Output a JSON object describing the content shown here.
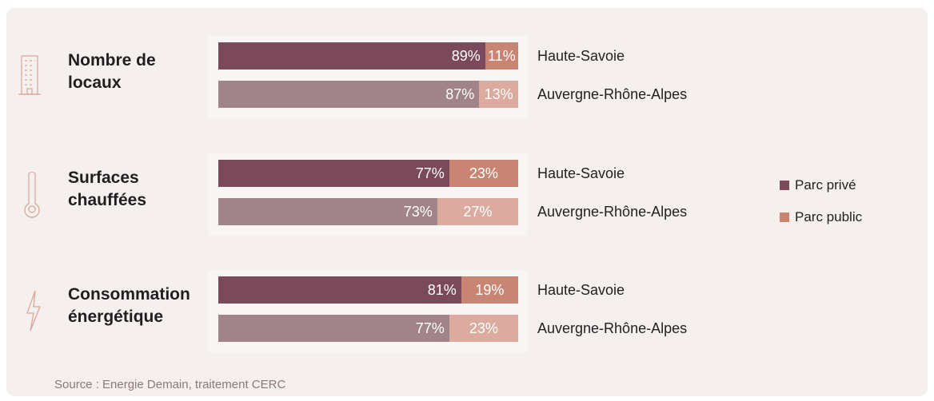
{
  "chart_data": {
    "type": "stacked-bar",
    "orientation": "horizontal",
    "groups": [
      "Nombre de locaux",
      "Surfaces chauffées",
      "Consommation énergétique"
    ],
    "categories": [
      "Haute-Savoie",
      "Auvergne-Rhône-Alpes"
    ],
    "xlim": [
      0,
      100
    ],
    "legend": "right",
    "series": [
      {
        "name": "Parc privé",
        "color": "#7b4a5a",
        "colors": [
          "#7b4a5a",
          "#a1838a"
        ],
        "values": [
          [
            89,
            87
          ],
          [
            77,
            73
          ],
          [
            81,
            77
          ]
        ],
        "value_labels": [
          [
            "89%",
            "87%"
          ],
          [
            "77%",
            "73%"
          ],
          [
            "81%",
            "77%"
          ]
        ]
      },
      {
        "name": "Parc public",
        "color": "#c98573",
        "colors": [
          "#c98573",
          "#dbab9f"
        ],
        "values": [
          [
            11,
            13
          ],
          [
            23,
            27
          ],
          [
            19,
            23
          ]
        ],
        "value_labels": [
          [
            "11%",
            "13%"
          ],
          [
            "23%",
            "27%"
          ],
          [
            "19%",
            "23%"
          ]
        ]
      }
    ]
  },
  "source": "Source : Energie Demain, traitement CERC"
}
